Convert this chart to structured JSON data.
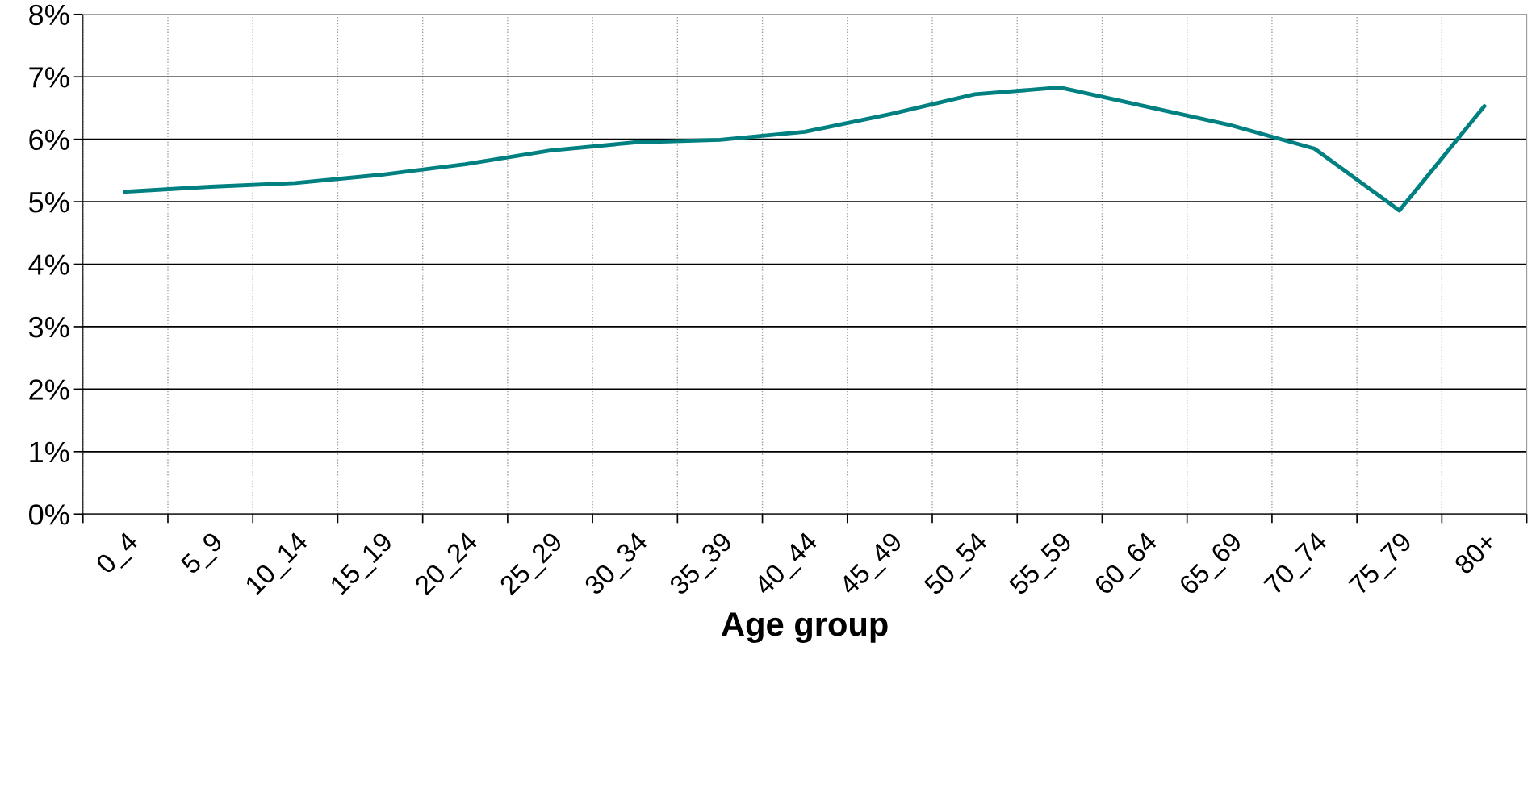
{
  "chart_data": {
    "type": "line",
    "xlabel": "Age group",
    "categories": [
      "0_4",
      "5_9",
      "10_14",
      "15_19",
      "20_24",
      "25_29",
      "30_34",
      "35_39",
      "40_44",
      "45_49",
      "50_54",
      "55_59",
      "60_64",
      "65_69",
      "70_74",
      "75_79",
      "80+"
    ],
    "series": [
      {
        "color": "#008080",
        "values": [
          5.16,
          5.24,
          5.3,
          5.43,
          5.6,
          5.82,
          5.95,
          5.99,
          6.12,
          6.4,
          6.72,
          6.83,
          6.53,
          6.23,
          5.85,
          4.86,
          6.53
        ]
      }
    ],
    "ylim": [
      0,
      8
    ],
    "yticks": [
      {
        "value": 0,
        "label": "0%"
      },
      {
        "value": 1,
        "label": "1%"
      },
      {
        "value": 2,
        "label": "2%"
      },
      {
        "value": 3,
        "label": "3%"
      },
      {
        "value": 4,
        "label": "4%"
      },
      {
        "value": 5,
        "label": "5%"
      },
      {
        "value": 6,
        "label": "6%"
      },
      {
        "value": 7,
        "label": "7%"
      },
      {
        "value": 8,
        "label": "8%"
      }
    ],
    "grid": true,
    "marker": "none",
    "line_style": "solid",
    "legend": false
  }
}
